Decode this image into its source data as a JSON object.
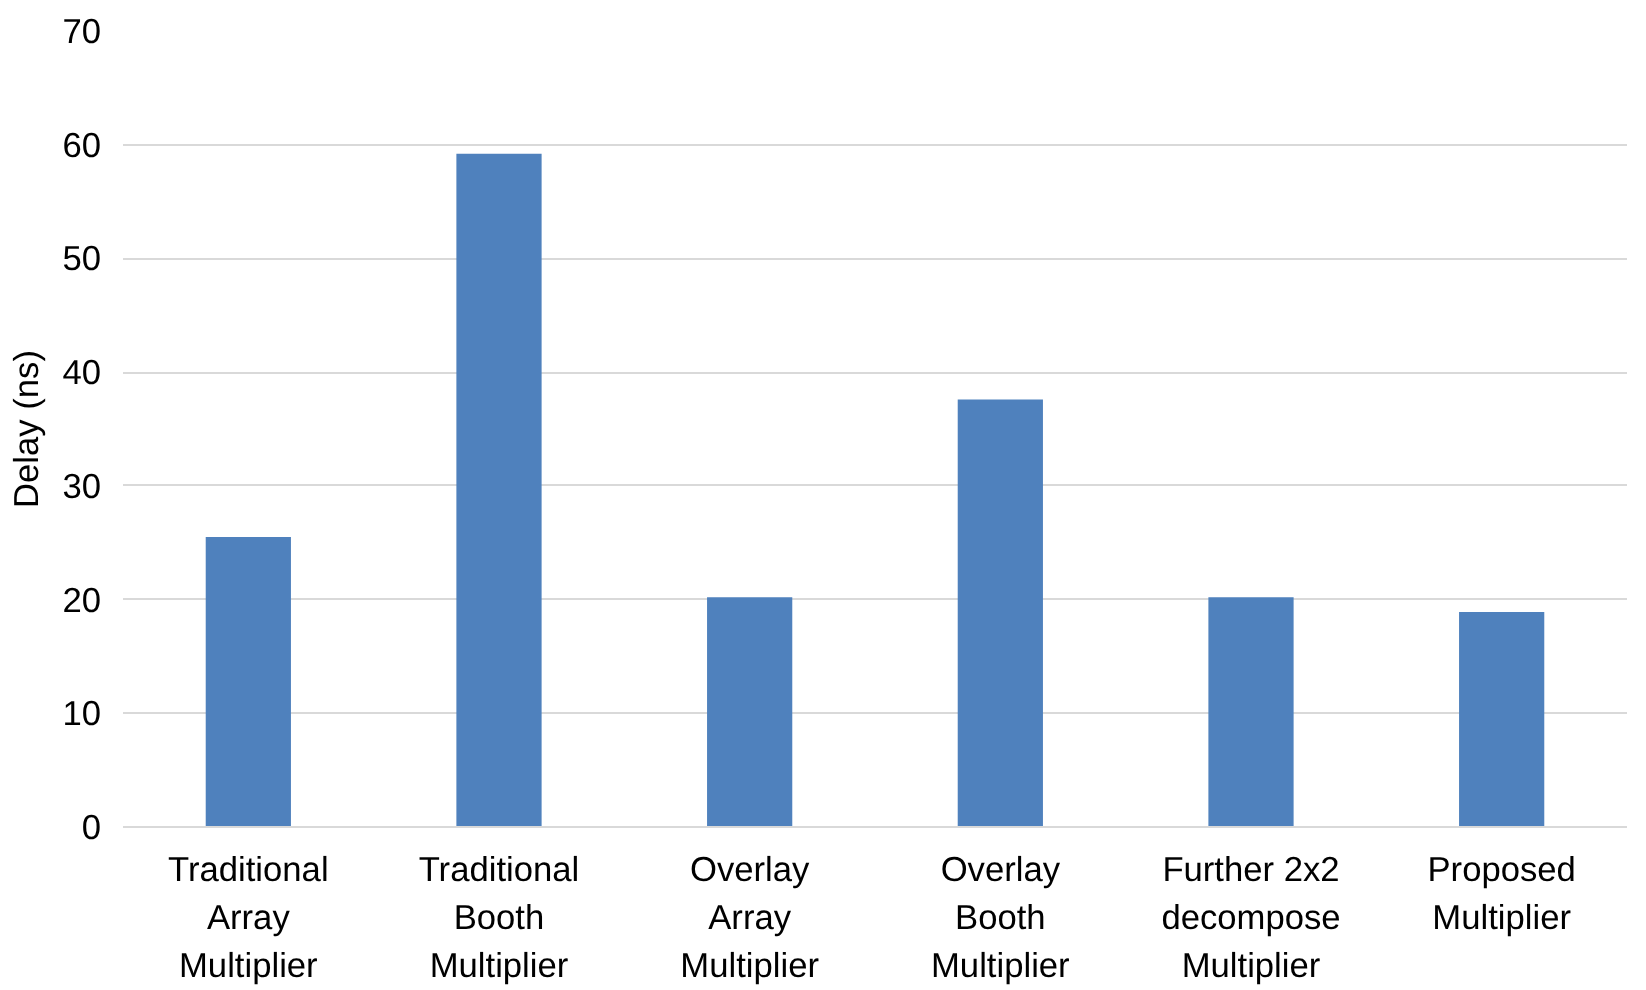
{
  "chart_data": {
    "type": "bar",
    "ylabel": "Delay (ns)",
    "categories": [
      "Traditional Array Multiplier",
      "Traditional Booth Multiplier",
      "Overlay Array Multiplier",
      "Overlay Booth Multiplier",
      "Further 2x2 decompose Multiplier",
      "Proposed Multiplier"
    ],
    "values": [
      25.5,
      59.2,
      20.2,
      37.6,
      20.2,
      18.9
    ],
    "color": "#4f81bd",
    "ylim": [
      0,
      70
    ],
    "yticks": [
      0,
      10,
      20,
      30,
      40,
      50,
      60,
      70
    ],
    "grid": "y"
  }
}
